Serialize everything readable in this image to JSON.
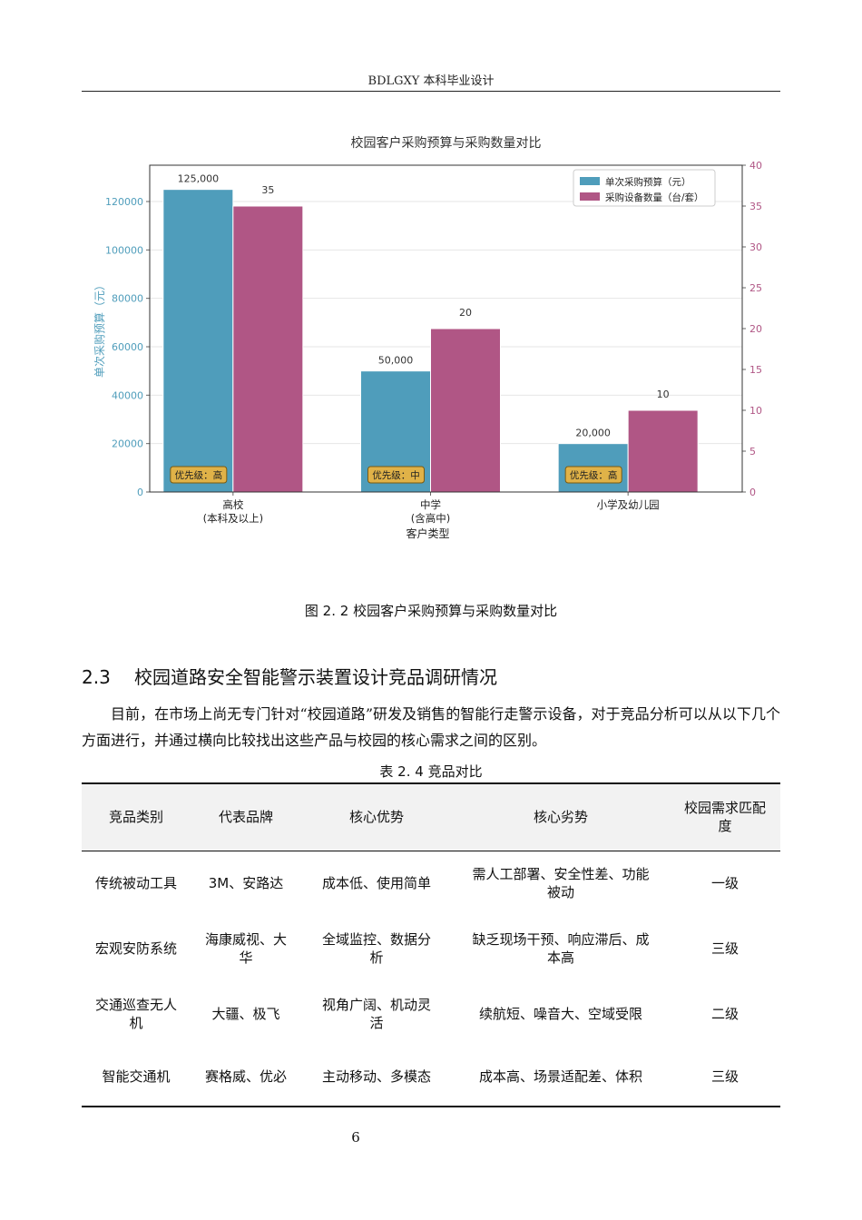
{
  "header": {
    "title": "BDLGXY 本科毕业设计"
  },
  "figure": {
    "caption": "图 2. 2 校园客户采购预算与采购数量对比"
  },
  "chart_data": {
    "type": "bar",
    "title": "校园客户采购预算与采购数量对比",
    "xlabel": "客户类型",
    "ylabel": "单次采购预算（元）",
    "y2label": "采购设备数量（台/套）",
    "categories": [
      "高校\n(本科及以上)",
      "中学\n(含高中)",
      "小学及幼儿园"
    ],
    "series": [
      {
        "name": "单次采购预算（元）",
        "axis": "left",
        "values": [
          125000,
          50000,
          20000
        ],
        "labels": [
          "125,000",
          "50,000",
          "20,000"
        ],
        "color": "#4f9dbb"
      },
      {
        "name": "采购设备数量（台/套）",
        "axis": "right",
        "values": [
          35,
          20,
          10
        ],
        "labels": [
          "35",
          "20",
          "10"
        ],
        "color": "#b05685"
      }
    ],
    "ylim": [
      0,
      135000
    ],
    "y2lim": [
      0,
      40
    ],
    "yticks": [
      0,
      20000,
      40000,
      60000,
      80000,
      100000,
      120000
    ],
    "y2ticks": [
      0,
      5,
      10,
      15,
      20,
      25,
      30,
      35,
      40
    ],
    "badges": [
      "优先级：高",
      "优先级：中",
      "优先级：高"
    ],
    "grid": true,
    "legend": "top-right",
    "left_axis_color": "#4f9dbb",
    "right_axis_color": "#b05685"
  },
  "section": {
    "number": "2.3",
    "title": "校园道路安全智能警示装置设计竞品调研情况"
  },
  "paragraph": "目前，在市场上尚无专门针对“校园道路”研发及销售的智能行走警示设备，对于竞品分析可以从以下几个方面进行，并通过横向比较找出这些产品与校园的核心需求之间的区别。",
  "table": {
    "caption": "表 2. 4 竞品对比",
    "headers": [
      "竞品类别",
      "代表品牌",
      "核心优势",
      "核心劣势",
      "校园需求匹配度"
    ],
    "rows": [
      [
        "传统被动工具",
        "3M、安路达",
        "成本低、使用简单",
        "需人工部署、安全性差、功能被动",
        "一级"
      ],
      [
        "宏观安防系统",
        "海康威视、大华",
        "全域监控、数据分析",
        "缺乏现场干预、响应滞后、成本高",
        "三级"
      ],
      [
        "交通巡查无人机",
        "大疆、极飞",
        "视角广阔、机动灵活",
        "续航短、噪音大、空域受限",
        "二级"
      ],
      [
        "智能交通机",
        "赛格威、优必",
        "主动移动、多模态",
        "成本高、场景适配差、体积",
        "三级"
      ]
    ]
  },
  "page": {
    "number": "6"
  }
}
